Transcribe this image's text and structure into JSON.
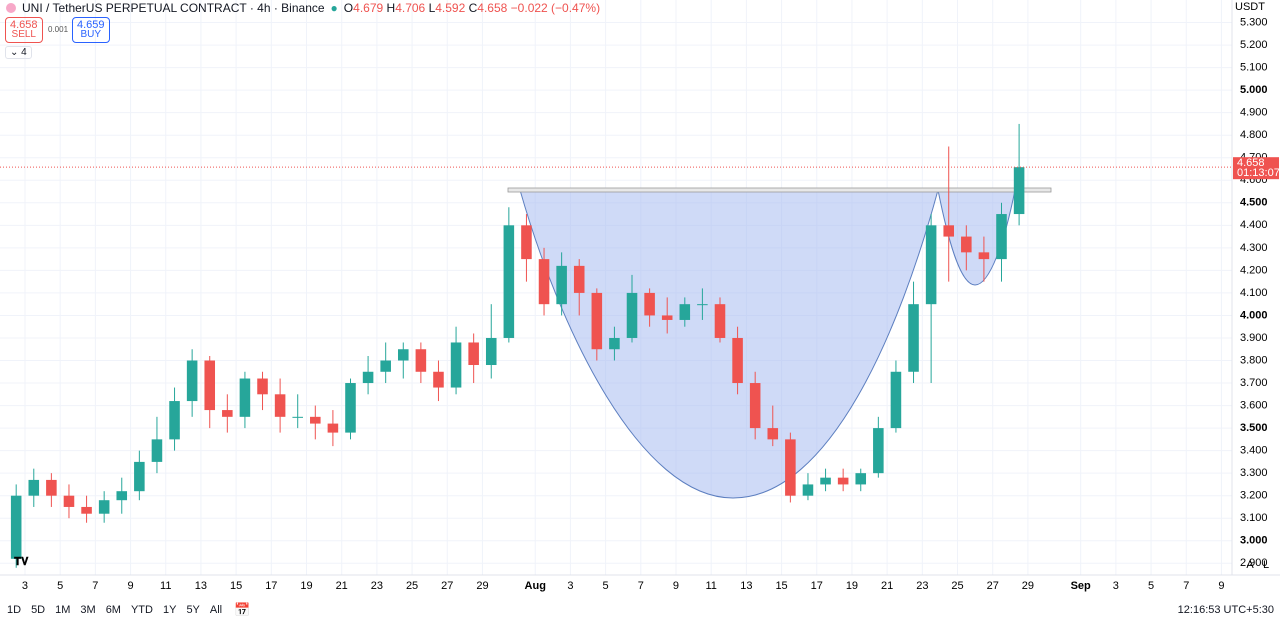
{
  "header": {
    "symbol": "UNI / TetherUS PERPETUAL CONTRACT · 4h · Binance",
    "o_label": "O",
    "o": 4.679,
    "h_label": "H",
    "h": 4.706,
    "l_label": "L",
    "l": 4.592,
    "c_label": "C",
    "c": 4.658,
    "change": "−0.022 (−0.47%)",
    "sell_price": 4.658,
    "sell": "SELL",
    "spread": 0.001,
    "buy_price": 4.659,
    "buy": "BUY",
    "indicators": 4
  },
  "toolbar": {
    "ranges": [
      "1D",
      "5D",
      "1M",
      "3M",
      "6M",
      "YTD",
      "1Y",
      "5Y",
      "All"
    ],
    "time": "12:16:53 UTC+5:30",
    "auto": "A",
    "log": "L"
  },
  "chart_data": {
    "type": "candlestick",
    "currency": "USDT",
    "countdown": "01:13:07",
    "up_color": "#26a69a",
    "down_color": "#ef5350",
    "grid": true,
    "x": [
      2.5,
      3.5,
      4.5,
      5.5,
      6.5,
      7.5,
      8.5,
      9.5,
      10.5,
      11.5,
      12.5,
      13.5,
      14.5,
      15.5,
      16.5,
      17.5,
      18.5,
      19.5,
      20.5,
      21.5,
      22.5,
      23.5,
      24.5,
      25.5,
      26.5,
      27.5,
      28.5,
      29.5,
      30.5,
      31.5,
      32.5,
      33.5,
      34.5,
      35.5,
      36.5,
      37.5,
      38.5,
      39.5,
      40.5,
      41.5,
      42.5,
      43.5,
      44.5,
      45.5,
      46.5,
      47.5,
      48.5,
      49.5,
      50.5,
      51.5,
      52.5,
      53.5,
      54.5,
      55.5,
      56.5,
      57.5,
      58.5,
      59.5
    ],
    "open": [
      2.92,
      3.2,
      3.27,
      3.2,
      3.15,
      3.12,
      3.18,
      3.22,
      3.35,
      3.45,
      3.62,
      3.8,
      3.58,
      3.55,
      3.72,
      3.65,
      3.55,
      3.55,
      3.52,
      3.48,
      3.7,
      3.75,
      3.8,
      3.85,
      3.75,
      3.68,
      3.88,
      3.78,
      3.9,
      4.4,
      4.25,
      4.05,
      4.22,
      4.1,
      3.85,
      3.9,
      4.1,
      4.0,
      3.98,
      4.05,
      4.05,
      3.9,
      3.7,
      3.5,
      3.45,
      3.2,
      3.25,
      3.28,
      3.25,
      3.3,
      3.5,
      3.75,
      4.05,
      4.4,
      4.35,
      4.28,
      4.25,
      4.45
    ],
    "high": [
      3.25,
      3.32,
      3.3,
      3.25,
      3.2,
      3.22,
      3.28,
      3.4,
      3.55,
      3.68,
      3.85,
      3.82,
      3.65,
      3.75,
      3.75,
      3.72,
      3.65,
      3.6,
      3.58,
      3.72,
      3.82,
      3.88,
      3.88,
      3.88,
      3.8,
      3.95,
      3.92,
      4.05,
      4.48,
      4.45,
      4.3,
      4.28,
      4.25,
      4.12,
      3.95,
      4.18,
      4.12,
      4.08,
      4.08,
      4.12,
      4.08,
      3.95,
      3.75,
      3.6,
      3.48,
      3.3,
      3.32,
      3.32,
      3.32,
      3.55,
      3.8,
      4.15,
      4.45,
      4.75,
      4.4,
      4.35,
      4.5,
      4.85
    ],
    "low": [
      2.88,
      3.15,
      3.15,
      3.1,
      3.08,
      3.08,
      3.12,
      3.18,
      3.3,
      3.4,
      3.55,
      3.5,
      3.48,
      3.5,
      3.58,
      3.48,
      3.5,
      3.45,
      3.42,
      3.45,
      3.65,
      3.7,
      3.72,
      3.7,
      3.62,
      3.65,
      3.7,
      3.72,
      3.88,
      4.15,
      4.0,
      4.0,
      4.0,
      3.8,
      3.8,
      3.88,
      3.95,
      3.92,
      3.95,
      3.98,
      3.88,
      3.65,
      3.45,
      3.42,
      3.17,
      3.18,
      3.22,
      3.22,
      3.22,
      3.28,
      3.48,
      3.7,
      3.7,
      4.15,
      4.2,
      4.15,
      4.15,
      4.4
    ],
    "close": [
      3.2,
      3.27,
      3.2,
      3.15,
      3.12,
      3.18,
      3.22,
      3.35,
      3.45,
      3.62,
      3.8,
      3.58,
      3.55,
      3.72,
      3.65,
      3.55,
      3.55,
      3.52,
      3.48,
      3.7,
      3.75,
      3.8,
      3.85,
      3.75,
      3.68,
      3.88,
      3.78,
      3.9,
      4.4,
      4.25,
      4.05,
      4.22,
      4.1,
      3.85,
      3.9,
      4.1,
      4.0,
      3.98,
      4.05,
      4.05,
      3.9,
      3.7,
      3.5,
      3.45,
      3.2,
      3.25,
      3.28,
      3.25,
      3.3,
      3.5,
      3.75,
      4.05,
      4.4,
      4.35,
      4.28,
      4.25,
      4.45,
      4.658
    ],
    "xlim": [
      1.58,
      71.6
    ],
    "ylim": [
      2.848,
      5.4
    ],
    "xticks": [
      3,
      5,
      7,
      9,
      11,
      13,
      15,
      17,
      19,
      21,
      23,
      25,
      27,
      29,
      {
        "value": 32,
        "label": "Aug"
      },
      {
        "value": 34,
        "label": "3"
      },
      {
        "value": 36,
        "label": "5"
      },
      {
        "value": 38,
        "label": "7"
      },
      {
        "value": 40,
        "label": "9"
      },
      {
        "value": 42,
        "label": "11"
      },
      {
        "value": 44,
        "label": "13"
      },
      {
        "value": 46,
        "label": "15"
      },
      {
        "value": 48,
        "label": "17"
      },
      {
        "value": 50,
        "label": "19"
      },
      {
        "value": 52,
        "label": "21"
      },
      {
        "value": 54,
        "label": "23"
      },
      {
        "value": 56,
        "label": "25"
      },
      {
        "value": 58,
        "label": "27"
      },
      {
        "value": 60,
        "label": "29"
      },
      {
        "value": 63,
        "label": "Sep"
      },
      {
        "value": 65,
        "label": "3"
      },
      {
        "value": 67,
        "label": "5"
      },
      {
        "value": 69,
        "label": "7"
      },
      {
        "value": 71,
        "label": "9"
      }
    ],
    "yticks": [
      {
        "value": 2.9,
        "label": "2.900"
      },
      {
        "value": 3.0,
        "label": "3.000"
      },
      {
        "value": 3.1,
        "label": "3.100"
      },
      {
        "value": 3.2,
        "label": "3.200"
      },
      {
        "value": 3.3,
        "label": "3.300"
      },
      {
        "value": 3.4,
        "label": "3.400"
      },
      {
        "value": 3.5,
        "label": "3.500"
      },
      {
        "value": 3.6,
        "label": "3.600"
      },
      {
        "value": 3.7,
        "label": "3.700"
      },
      {
        "value": 3.8,
        "label": "3.800"
      },
      {
        "value": 3.9,
        "label": "3.900"
      },
      {
        "value": 4.0,
        "label": "4.000"
      },
      {
        "value": 4.1,
        "label": "4.100"
      },
      {
        "value": 4.2,
        "label": "4.200"
      },
      {
        "value": 4.3,
        "label": "4.300"
      },
      {
        "value": 4.4,
        "label": "4.400"
      },
      {
        "value": 4.5,
        "label": "4.500"
      },
      {
        "value": 4.6,
        "label": "4.600"
      },
      {
        "value": 4.7,
        "label": "4.700"
      },
      {
        "value": 4.8,
        "label": "4.800"
      },
      {
        "value": 4.9,
        "label": "4.900"
      },
      {
        "value": 5.0,
        "label": "5.000"
      },
      {
        "value": 5.1,
        "label": "5.100"
      },
      {
        "value": 5.2,
        "label": "5.200"
      },
      {
        "value": 5.3,
        "label": "5.300"
      }
    ]
  }
}
